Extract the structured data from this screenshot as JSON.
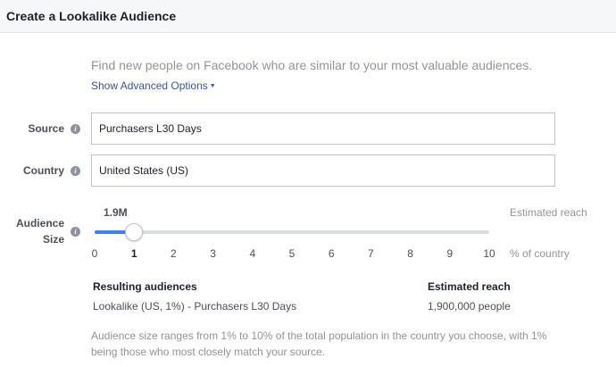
{
  "header": {
    "title": "Create a Lookalike Audience"
  },
  "intro": {
    "text": "Find new people on Facebook who are similar to your most valuable audiences.",
    "advanced_link": "Show Advanced Options",
    "advanced_caret": "▼"
  },
  "source": {
    "label": "Source",
    "value": "Purchasers L30 Days"
  },
  "country": {
    "label": "Country",
    "value": "United States (US)"
  },
  "audience_size": {
    "label_line1": "Audience",
    "label_line2": "Size",
    "value_display": "1.9M",
    "estimated_reach_label": "Estimated reach",
    "percent_label": "% of country",
    "ticks": [
      "0",
      "1",
      "2",
      "3",
      "4",
      "5",
      "6",
      "7",
      "8",
      "9",
      "10"
    ],
    "slider_min": 0,
    "slider_max": 10,
    "slider_value": 1
  },
  "results": {
    "col1_header": "Resulting audiences",
    "col2_header": "Estimated reach",
    "rows": [
      {
        "audience": "Lookalike (US, 1%) - Purchasers L30 Days",
        "reach": "1,900,000 people"
      }
    ]
  },
  "footnote": "Audience size ranges from 1% to 10% of the total population in the country you choose, with 1% being those who most closely match your source.",
  "icons": {
    "info": "info-icon"
  },
  "colors": {
    "link": "#365899",
    "slider_fill": "#4080ff",
    "header_bg": "#f6f7f9"
  }
}
